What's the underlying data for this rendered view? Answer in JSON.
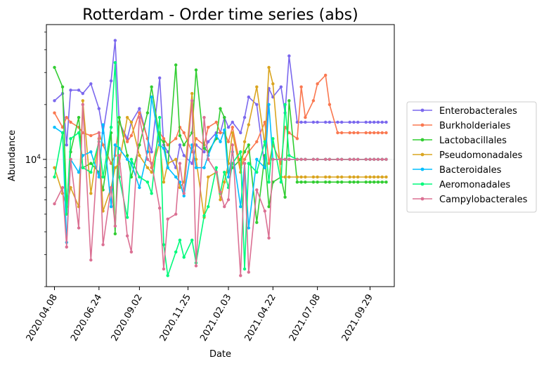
{
  "chart_data": {
    "type": "line",
    "title": "Rotterdam - Order time series (abs)",
    "xlabel": "Date",
    "ylabel": "Abundance",
    "yscale": "log",
    "ylim": [
      2000,
      55000
    ],
    "y_tick_label": "10^4",
    "y_tick_value": 10000,
    "x_ticks": [
      "2020.04.08",
      "2020.06.24",
      "2020.09.02",
      "2020.11.25",
      "2021.02.03",
      "2021.04.22",
      "2021.07.08",
      "2021.09.29"
    ],
    "x_tick_index": [
      0,
      11,
      21,
      33,
      43,
      54,
      65,
      78
    ],
    "x": [
      0,
      2,
      3,
      4,
      6,
      7,
      9,
      11,
      12,
      14,
      15,
      16,
      18,
      19,
      21,
      23,
      24,
      26,
      27,
      28,
      30,
      31,
      32,
      34,
      35,
      37,
      38,
      40,
      41,
      42,
      43,
      44,
      46,
      47,
      48,
      50,
      52,
      53,
      54,
      56,
      57,
      58,
      60,
      61,
      62,
      64,
      65,
      67,
      68,
      70,
      71,
      73,
      74,
      75,
      77,
      78,
      79,
      80,
      81,
      82
    ],
    "legend_position": "right",
    "series": [
      {
        "name": "Enterobacterales",
        "color": "#7b68ee",
        "values": [
          21000,
          23000,
          12000,
          24000,
          24000,
          23000,
          26000,
          19000,
          14000,
          27000,
          45000,
          16000,
          13000,
          16000,
          19000,
          13000,
          11000,
          28000,
          12000,
          11000,
          9000,
          12000,
          10500,
          9500,
          12000,
          11000,
          12500,
          14000,
          14000,
          17000,
          15000,
          16000,
          14000,
          17000,
          22000,
          20000,
          9000,
          24500,
          22000,
          25000,
          18000,
          37000,
          16000,
          16000,
          16000,
          16000,
          16000,
          16000,
          16000,
          16000,
          16000,
          16000,
          16000,
          16000,
          16000,
          16000,
          16000,
          16000,
          16000,
          16000
        ]
      },
      {
        "name": "Burkholderiales",
        "color": "#fa7850",
        "values": [
          18000,
          15000,
          17000,
          16000,
          15000,
          14000,
          13500,
          14000,
          12000,
          9500,
          10500,
          16000,
          12500,
          13500,
          18000,
          13000,
          9000,
          14000,
          13000,
          12000,
          13000,
          15000,
          14000,
          11000,
          13000,
          12000,
          15000,
          16000,
          14000,
          14000,
          12500,
          15000,
          9000,
          10000,
          11000,
          12500,
          16000,
          9500,
          12000,
          9500,
          15000,
          14000,
          13000,
          25000,
          17000,
          21000,
          26000,
          29000,
          20000,
          14000,
          14000,
          14000,
          14000,
          14000,
          14000,
          14000,
          14000,
          14000,
          14000,
          14000
        ]
      },
      {
        "name": "Lactobacillales",
        "color": "#32cd32",
        "values": [
          32000,
          25000,
          5500,
          11000,
          17000,
          9000,
          9500,
          8500,
          6800,
          14000,
          3900,
          17000,
          10500,
          8000,
          12000,
          18000,
          25000,
          13000,
          12500,
          9000,
          33000,
          13500,
          12000,
          14000,
          31000,
          11500,
          11000,
          13000,
          19000,
          17000,
          8500,
          9000,
          10000,
          11000,
          12000,
          4500,
          10500,
          5500,
          7500,
          8000,
          6200,
          21000,
          7500,
          7500,
          7500,
          7500,
          7500,
          7500,
          7500,
          7500,
          7500,
          7500,
          7500,
          7500,
          7500,
          7500,
          7500,
          7500,
          7500,
          7500
        ]
      },
      {
        "name": "Pseudomonadales",
        "color": "#daa520",
        "values": [
          9000,
          6500,
          5500,
          7000,
          5500,
          21000,
          6500,
          13000,
          5200,
          7000,
          9000,
          9500,
          17000,
          16000,
          10500,
          9000,
          8500,
          12500,
          7500,
          9500,
          10000,
          7000,
          7500,
          23000,
          10000,
          4800,
          8000,
          8500,
          6000,
          7500,
          9500,
          14000,
          8500,
          12500,
          15500,
          25000,
          12000,
          32000,
          26000,
          8000,
          8000,
          8000,
          8000,
          8000,
          8000,
          8000,
          8000,
          8000,
          8000,
          8000,
          8000,
          8000,
          8000,
          8000,
          8000,
          8000,
          8000,
          8000,
          8000,
          8000
        ]
      },
      {
        "name": "Bacteroidales",
        "color": "#00bfff",
        "values": [
          15000,
          14000,
          3500,
          10000,
          8500,
          10500,
          11000,
          8000,
          15500,
          5500,
          12000,
          11500,
          10000,
          9500,
          7000,
          11000,
          22000,
          12000,
          11500,
          9000,
          8000,
          7500,
          6300,
          12000,
          9000,
          9000,
          10500,
          13500,
          12500,
          14500,
          8000,
          11000,
          5500,
          9500,
          4200,
          10000,
          9000,
          20000,
          10000,
          10000,
          10000,
          10000,
          10000,
          10000,
          10000,
          10000,
          10000,
          10000,
          10000,
          10000,
          10000,
          10000,
          10000,
          10000,
          10000,
          10000,
          10000,
          10000,
          10000,
          10000
        ]
      },
      {
        "name": "Aeromonadales",
        "color": "#00fa7b",
        "values": [
          8000,
          14000,
          5000,
          13000,
          14000,
          9000,
          8500,
          12500,
          8000,
          15000,
          34000,
          8000,
          4800,
          10000,
          8000,
          7500,
          6500,
          17000,
          3400,
          2300,
          3100,
          3600,
          2900,
          3600,
          2700,
          4900,
          5500,
          9000,
          6500,
          8500,
          7000,
          9500,
          11000,
          2500,
          9500,
          8500,
          12500,
          7500,
          13000,
          7500,
          20000,
          10500,
          10000,
          10000,
          10000,
          10000,
          10000,
          10000,
          10000,
          10000,
          10000,
          10000,
          10000,
          10000,
          10000,
          10000,
          10000,
          10000,
          10000,
          10000
        ]
      },
      {
        "name": "Campylobacterales",
        "color": "#db7093",
        "values": [
          5700,
          7000,
          3300,
          10000,
          4200,
          20000,
          2800,
          14000,
          3400,
          7000,
          4300,
          10500,
          3800,
          3100,
          17000,
          10000,
          9500,
          5400,
          2500,
          4700,
          5000,
          9500,
          6500,
          21000,
          2600,
          17000,
          10000,
          8500,
          6600,
          5500,
          6000,
          12000,
          2300,
          9500,
          2400,
          6800,
          5200,
          3700,
          10000,
          10000,
          10000,
          10000,
          10000,
          10000,
          10000,
          10000,
          10000,
          10000,
          10000,
          10000,
          10000,
          10000,
          10000,
          10000,
          10000,
          10000,
          10000,
          10000,
          10000,
          10000
        ]
      }
    ]
  }
}
